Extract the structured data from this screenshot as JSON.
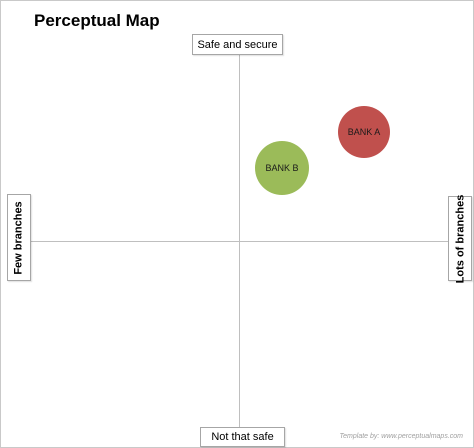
{
  "title": "Perceptual Map",
  "axes": {
    "top": "Safe and secure",
    "bottom": "Not that safe",
    "left": "Few branches",
    "right": "Lots of branches"
  },
  "items": [
    {
      "label": "BANK A",
      "color": "#c0504d"
    },
    {
      "label": "BANK B",
      "color": "#9bbb59"
    }
  ],
  "credit": "Template by: www.perceptualmaps.com"
}
